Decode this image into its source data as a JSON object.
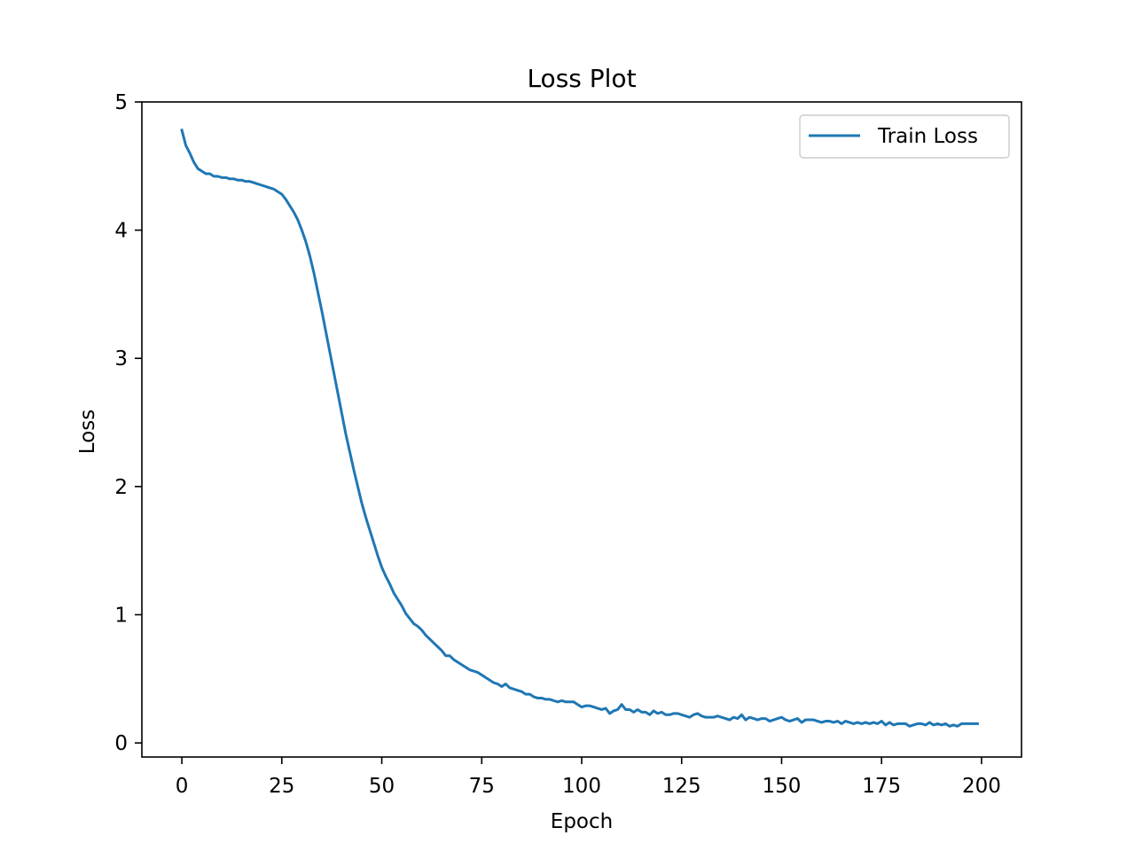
{
  "chart_data": {
    "type": "line",
    "title": "Loss Plot",
    "xlabel": "Epoch",
    "ylabel": "Loss",
    "xlim": [
      -10,
      210
    ],
    "ylim": [
      -0.11,
      5.0
    ],
    "xticks": [
      0,
      25,
      50,
      75,
      100,
      125,
      150,
      175,
      200
    ],
    "yticks": [
      0,
      1,
      2,
      3,
      4,
      5
    ],
    "grid": false,
    "legend_position": "top-right",
    "series": [
      {
        "name": "Train Loss",
        "color": "#1f77b4",
        "x": [
          0,
          1,
          2,
          3,
          4,
          5,
          6,
          7,
          8,
          9,
          10,
          11,
          12,
          13,
          14,
          15,
          16,
          17,
          18,
          19,
          20,
          21,
          22,
          23,
          24,
          25,
          26,
          27,
          28,
          29,
          30,
          31,
          32,
          33,
          34,
          35,
          36,
          37,
          38,
          39,
          40,
          41,
          42,
          43,
          44,
          45,
          46,
          47,
          48,
          49,
          50,
          51,
          52,
          53,
          54,
          55,
          56,
          57,
          58,
          59,
          60,
          61,
          62,
          63,
          64,
          65,
          66,
          67,
          68,
          69,
          70,
          71,
          72,
          73,
          74,
          75,
          76,
          77,
          78,
          79,
          80,
          81,
          82,
          83,
          84,
          85,
          86,
          87,
          88,
          89,
          90,
          91,
          92,
          93,
          94,
          95,
          96,
          97,
          98,
          99,
          100,
          101,
          102,
          103,
          104,
          105,
          106,
          107,
          108,
          109,
          110,
          111,
          112,
          113,
          114,
          115,
          116,
          117,
          118,
          119,
          120,
          121,
          122,
          123,
          124,
          125,
          126,
          127,
          128,
          129,
          130,
          131,
          132,
          133,
          134,
          135,
          136,
          137,
          138,
          139,
          140,
          141,
          142,
          143,
          144,
          145,
          146,
          147,
          148,
          149,
          150,
          151,
          152,
          153,
          154,
          155,
          156,
          157,
          158,
          159,
          160,
          161,
          162,
          163,
          164,
          165,
          166,
          167,
          168,
          169,
          170,
          171,
          172,
          173,
          174,
          175,
          176,
          177,
          178,
          179,
          180,
          181,
          182,
          183,
          184,
          185,
          186,
          187,
          188,
          189,
          190,
          191,
          192,
          193,
          194,
          195,
          196,
          197,
          198,
          199
        ],
        "y": [
          4.78,
          4.66,
          4.6,
          4.53,
          4.48,
          4.46,
          4.44,
          4.44,
          4.42,
          4.42,
          4.41,
          4.41,
          4.4,
          4.4,
          4.39,
          4.39,
          4.38,
          4.38,
          4.37,
          4.36,
          4.35,
          4.34,
          4.33,
          4.32,
          4.3,
          4.28,
          4.24,
          4.19,
          4.14,
          4.08,
          4.0,
          3.91,
          3.8,
          3.67,
          3.52,
          3.37,
          3.21,
          3.05,
          2.89,
          2.73,
          2.57,
          2.41,
          2.27,
          2.13,
          2.0,
          1.87,
          1.76,
          1.66,
          1.56,
          1.46,
          1.37,
          1.3,
          1.24,
          1.17,
          1.12,
          1.07,
          1.01,
          0.97,
          0.93,
          0.91,
          0.88,
          0.84,
          0.81,
          0.78,
          0.75,
          0.72,
          0.68,
          0.68,
          0.65,
          0.63,
          0.61,
          0.59,
          0.57,
          0.56,
          0.55,
          0.53,
          0.51,
          0.49,
          0.47,
          0.46,
          0.44,
          0.46,
          0.43,
          0.42,
          0.41,
          0.4,
          0.38,
          0.38,
          0.36,
          0.35,
          0.35,
          0.34,
          0.34,
          0.33,
          0.32,
          0.33,
          0.32,
          0.32,
          0.32,
          0.3,
          0.28,
          0.29,
          0.29,
          0.28,
          0.27,
          0.26,
          0.27,
          0.23,
          0.25,
          0.26,
          0.3,
          0.26,
          0.26,
          0.24,
          0.26,
          0.24,
          0.24,
          0.22,
          0.25,
          0.23,
          0.24,
          0.22,
          0.22,
          0.23,
          0.23,
          0.22,
          0.21,
          0.2,
          0.22,
          0.23,
          0.21,
          0.2,
          0.2,
          0.2,
          0.21,
          0.2,
          0.19,
          0.18,
          0.2,
          0.19,
          0.22,
          0.18,
          0.2,
          0.19,
          0.18,
          0.19,
          0.19,
          0.17,
          0.18,
          0.19,
          0.2,
          0.18,
          0.17,
          0.18,
          0.19,
          0.16,
          0.18,
          0.18,
          0.18,
          0.17,
          0.16,
          0.17,
          0.17,
          0.16,
          0.17,
          0.15,
          0.17,
          0.16,
          0.15,
          0.16,
          0.15,
          0.16,
          0.15,
          0.16,
          0.15,
          0.17,
          0.14,
          0.16,
          0.14,
          0.15,
          0.15,
          0.15,
          0.13,
          0.14,
          0.15,
          0.15,
          0.14,
          0.16,
          0.14,
          0.15,
          0.14,
          0.15,
          0.13,
          0.14,
          0.13,
          0.15,
          0.15,
          0.15,
          0.15,
          0.15
        ]
      }
    ]
  }
}
